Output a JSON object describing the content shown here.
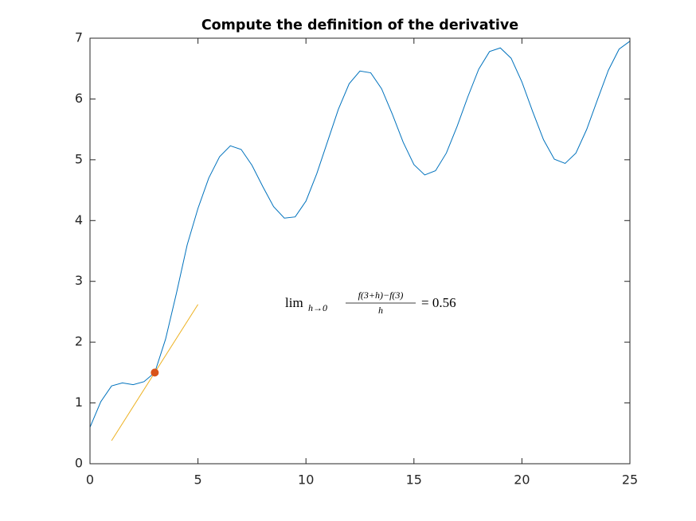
{
  "chart_data": {
    "type": "line",
    "title": "Compute the definition of the derivative",
    "xlim": [
      0,
      25
    ],
    "ylim": [
      0,
      7
    ],
    "xticks": [
      0,
      5,
      10,
      15,
      20,
      25
    ],
    "yticks": [
      0,
      1,
      2,
      3,
      4,
      5,
      6,
      7
    ],
    "box": true,
    "series": [
      {
        "color": "#0072bd",
        "x": [
          0,
          0.5,
          1,
          1.5,
          2,
          2.5,
          3,
          3.5,
          4,
          4.5,
          5,
          5.5,
          6,
          6.5,
          7,
          7.5,
          8,
          8.5,
          9,
          9.5,
          10,
          10.5,
          11,
          11.5,
          12,
          12.5,
          13,
          13.5,
          14,
          14.5,
          15,
          15.5,
          16,
          16.5,
          17,
          17.5,
          18,
          18.5,
          19,
          19.5,
          20,
          20.5,
          21,
          21.5,
          22,
          22.5,
          23,
          23.5,
          24,
          24.5,
          25
        ],
        "values": [
          0.6,
          1.02,
          1.28,
          1.33,
          1.3,
          1.35,
          1.5,
          2.05,
          2.8,
          3.6,
          4.2,
          4.7,
          5.05,
          5.23,
          5.17,
          4.91,
          4.56,
          4.23,
          4.04,
          4.06,
          4.32,
          4.77,
          5.3,
          5.83,
          6.25,
          6.46,
          6.43,
          6.17,
          5.75,
          5.29,
          4.92,
          4.75,
          4.82,
          5.11,
          5.55,
          6.04,
          6.49,
          6.78,
          6.84,
          6.67,
          6.28,
          5.79,
          5.33,
          5.01,
          4.94,
          5.11,
          5.5,
          5.99,
          6.47,
          6.82,
          6.95
        ]
      },
      {
        "color": "#edb120",
        "x": [
          1,
          5
        ],
        "values": [
          0.38,
          2.62
        ]
      }
    ],
    "points": {
      "color": "#d95319",
      "x": [
        3
      ],
      "values": [
        1.5
      ]
    },
    "annotation": {
      "lim": "lim",
      "sub": "h→0",
      "numerator": "f(3+h)−f(3)",
      "denominator": "h",
      "result": "= 0.56"
    }
  }
}
